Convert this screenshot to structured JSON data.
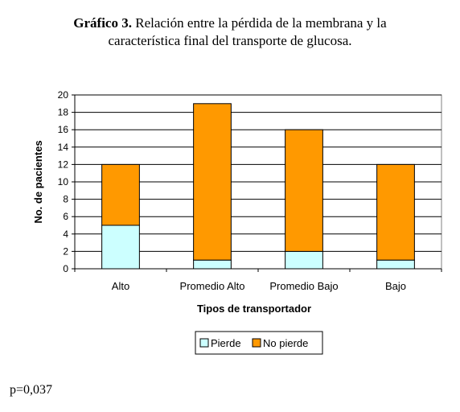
{
  "title": {
    "prefix": "Gráfico 3.",
    "line1": " Relación entre la pérdida de la membrana y la",
    "line2": "característica final  del transporte de glucosa."
  },
  "chart_data": {
    "type": "bar",
    "stacked": true,
    "categories": [
      "Alto",
      "Promedio Alto",
      "Promedio Bajo",
      "Bajo"
    ],
    "series": [
      {
        "name": "Pierde",
        "values": [
          5,
          1,
          2,
          1
        ],
        "color": "#ccffff"
      },
      {
        "name": "No pierde",
        "values": [
          7,
          18,
          14,
          11
        ],
        "color": "#ff9900"
      }
    ],
    "xlabel": "Tipos de transportador",
    "ylabel": "No. de pacientes",
    "ylim": [
      0,
      20
    ],
    "yticks": [
      0,
      2,
      4,
      6,
      8,
      10,
      12,
      14,
      16,
      18,
      20
    ],
    "grid": true,
    "legend_position": "bottom"
  },
  "footnote": "p=0,037"
}
